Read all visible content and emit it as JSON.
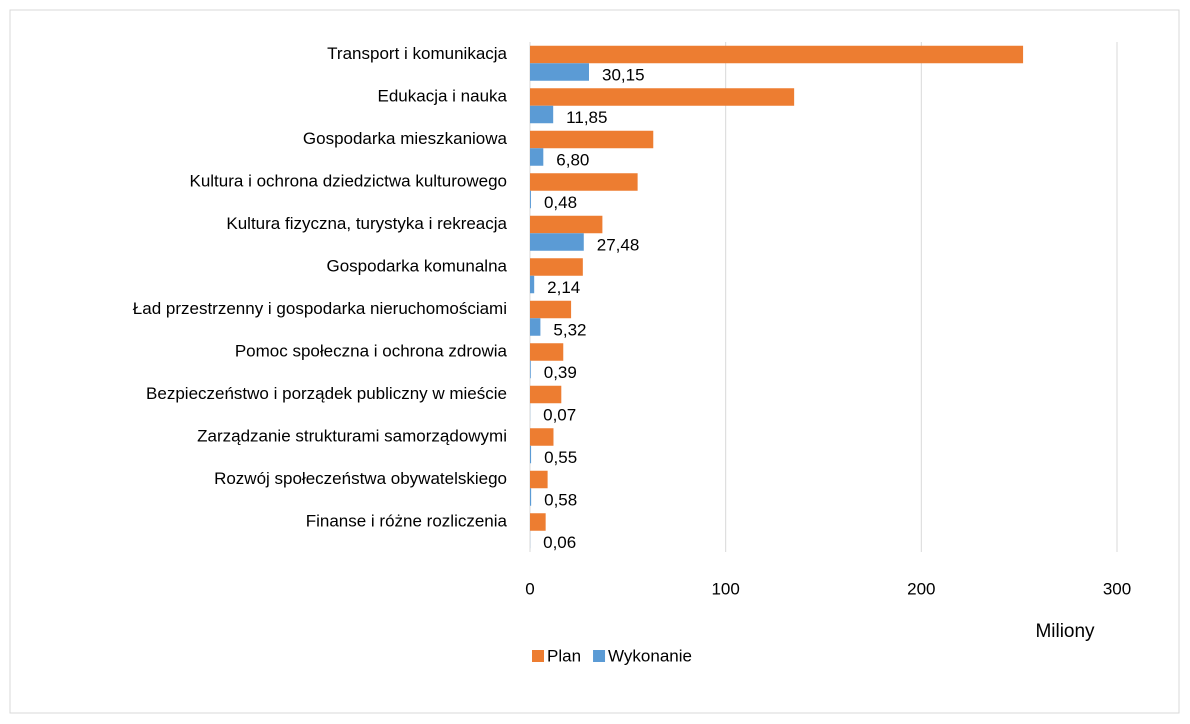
{
  "chart_data": {
    "type": "hbar",
    "categories": [
      "Transport i komunikacja",
      "Edukacja i nauka",
      "Gospodarka mieszkaniowa",
      "Kultura i ochrona dziedzictwa kulturowego",
      "Kultura fizyczna, turystyka i rekreacja",
      "Gospodarka komunalna",
      "Ład przestrzenny i gospodarka nieruchomościami",
      "Pomoc społeczna i ochrona zdrowia",
      "Bezpieczeństwo i porządek publiczny w mieście",
      "Zarządzanie strukturami samorządowymi",
      "Rozwój społeczeństwa obywatelskiego",
      "Finanse i różne rozliczenia"
    ],
    "series": [
      {
        "name": "Plan",
        "color": "#ed7d31",
        "values": [
          252,
          135,
          63,
          55,
          37,
          27,
          21,
          17,
          16,
          12,
          9,
          8
        ]
      },
      {
        "name": "Wykonanie",
        "color": "#5b9bd5",
        "values": [
          30.15,
          11.85,
          6.8,
          0.48,
          27.48,
          2.14,
          5.32,
          0.39,
          0.07,
          0.55,
          0.58,
          0.06
        ],
        "value_labels": [
          "30,15",
          "11,85",
          "6,80",
          "0,48",
          "27,48",
          "2,14",
          "5,32",
          "0,39",
          "0,07",
          "0,55",
          "0,58",
          "0,06"
        ]
      }
    ],
    "xlim": [
      0,
      300
    ],
    "xticks": [
      0,
      100,
      200,
      300
    ],
    "grid": true,
    "x_axis_label": "Miliony",
    "legend": "bottom"
  }
}
